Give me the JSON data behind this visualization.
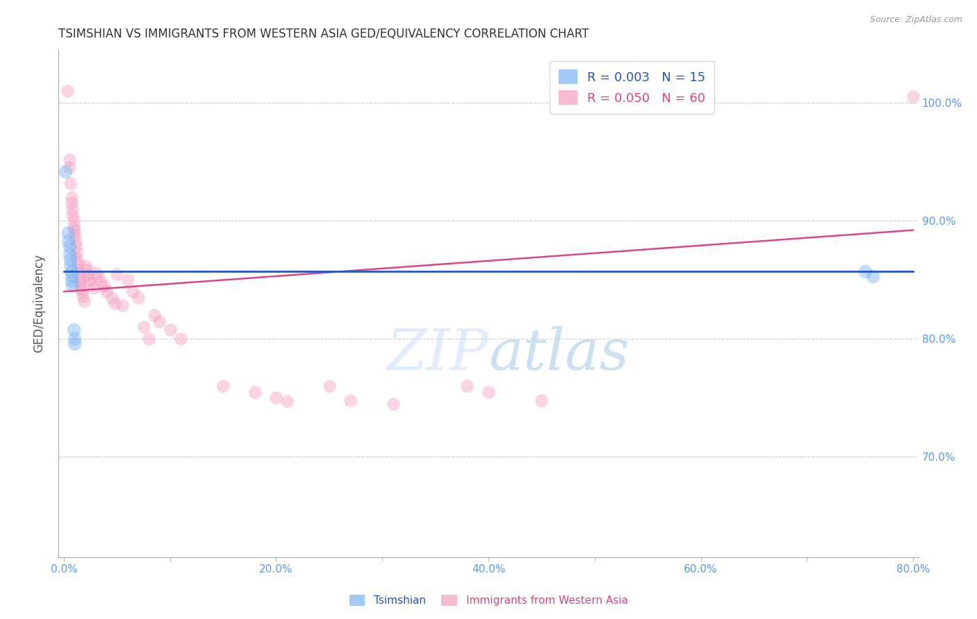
{
  "title": "TSIMSHIAN VS IMMIGRANTS FROM WESTERN ASIA GED/EQUIVALENCY CORRELATION CHART",
  "source": "Source: ZipAtlas.com",
  "ylabel": "GED/Equivalency",
  "xlim": [
    -0.005,
    0.805
  ],
  "ylim": [
    0.615,
    1.045
  ],
  "x_tick_vals": [
    0.0,
    0.1,
    0.2,
    0.3,
    0.4,
    0.5,
    0.6,
    0.7,
    0.8
  ],
  "x_tick_labels": [
    "0.0%",
    "",
    "20.0%",
    "",
    "40.0%",
    "",
    "60.0%",
    "",
    "80.0%"
  ],
  "y_ticks": [
    0.7,
    0.8,
    0.9,
    1.0
  ],
  "y_tick_labels": [
    "70.0%",
    "80.0%",
    "90.0%",
    "100.0%"
  ],
  "blue_dots": [
    [
      0.001,
      0.942
    ],
    [
      0.004,
      0.89
    ],
    [
      0.004,
      0.883
    ],
    [
      0.005,
      0.878
    ],
    [
      0.005,
      0.872
    ],
    [
      0.006,
      0.867
    ],
    [
      0.006,
      0.862
    ],
    [
      0.007,
      0.857
    ],
    [
      0.007,
      0.853
    ],
    [
      0.007,
      0.849
    ],
    [
      0.008,
      0.845
    ],
    [
      0.009,
      0.808
    ],
    [
      0.01,
      0.8
    ],
    [
      0.01,
      0.796
    ],
    [
      0.755,
      0.857
    ],
    [
      0.762,
      0.853
    ]
  ],
  "pink_dots": [
    [
      0.003,
      1.01
    ],
    [
      0.005,
      0.952
    ],
    [
      0.005,
      0.945
    ],
    [
      0.006,
      0.932
    ],
    [
      0.007,
      0.92
    ],
    [
      0.007,
      0.915
    ],
    [
      0.008,
      0.91
    ],
    [
      0.008,
      0.905
    ],
    [
      0.009,
      0.9
    ],
    [
      0.009,
      0.895
    ],
    [
      0.01,
      0.892
    ],
    [
      0.01,
      0.888
    ],
    [
      0.011,
      0.883
    ],
    [
      0.011,
      0.878
    ],
    [
      0.012,
      0.873
    ],
    [
      0.012,
      0.868
    ],
    [
      0.013,
      0.864
    ],
    [
      0.013,
      0.858
    ],
    [
      0.014,
      0.855
    ],
    [
      0.015,
      0.85
    ],
    [
      0.015,
      0.847
    ],
    [
      0.016,
      0.843
    ],
    [
      0.017,
      0.84
    ],
    [
      0.018,
      0.836
    ],
    [
      0.019,
      0.832
    ],
    [
      0.02,
      0.862
    ],
    [
      0.021,
      0.858
    ],
    [
      0.022,
      0.854
    ],
    [
      0.023,
      0.85
    ],
    [
      0.025,
      0.847
    ],
    [
      0.028,
      0.843
    ],
    [
      0.03,
      0.856
    ],
    [
      0.032,
      0.853
    ],
    [
      0.035,
      0.848
    ],
    [
      0.038,
      0.845
    ],
    [
      0.04,
      0.84
    ],
    [
      0.045,
      0.835
    ],
    [
      0.048,
      0.83
    ],
    [
      0.05,
      0.855
    ],
    [
      0.055,
      0.828
    ],
    [
      0.06,
      0.85
    ],
    [
      0.065,
      0.84
    ],
    [
      0.07,
      0.835
    ],
    [
      0.075,
      0.81
    ],
    [
      0.08,
      0.8
    ],
    [
      0.085,
      0.82
    ],
    [
      0.09,
      0.815
    ],
    [
      0.1,
      0.808
    ],
    [
      0.11,
      0.8
    ],
    [
      0.15,
      0.76
    ],
    [
      0.18,
      0.755
    ],
    [
      0.2,
      0.75
    ],
    [
      0.21,
      0.747
    ],
    [
      0.25,
      0.76
    ],
    [
      0.27,
      0.748
    ],
    [
      0.31,
      0.745
    ],
    [
      0.38,
      0.76
    ],
    [
      0.4,
      0.755
    ],
    [
      0.45,
      0.748
    ],
    [
      0.8,
      1.005
    ]
  ],
  "blue_line_x": [
    0.0,
    0.8
  ],
  "blue_line_y": [
    0.857,
    0.857
  ],
  "pink_line_x": [
    0.0,
    0.8
  ],
  "pink_line_y": [
    0.84,
    0.892
  ],
  "dot_size_blue": 200,
  "dot_size_pink": 180,
  "dot_alpha": 0.45,
  "blue_color": "#7ab3f5",
  "pink_color": "#f5a0c0",
  "blue_line_color": "#2255cc",
  "pink_line_color": "#dd4488",
  "grid_color": "#cccccc",
  "bg_color": "#ffffff",
  "title_fontsize": 12,
  "axis_label_color": "#5599ff",
  "watermark_color": "#cce0ff",
  "watermark_alpha": 0.6
}
